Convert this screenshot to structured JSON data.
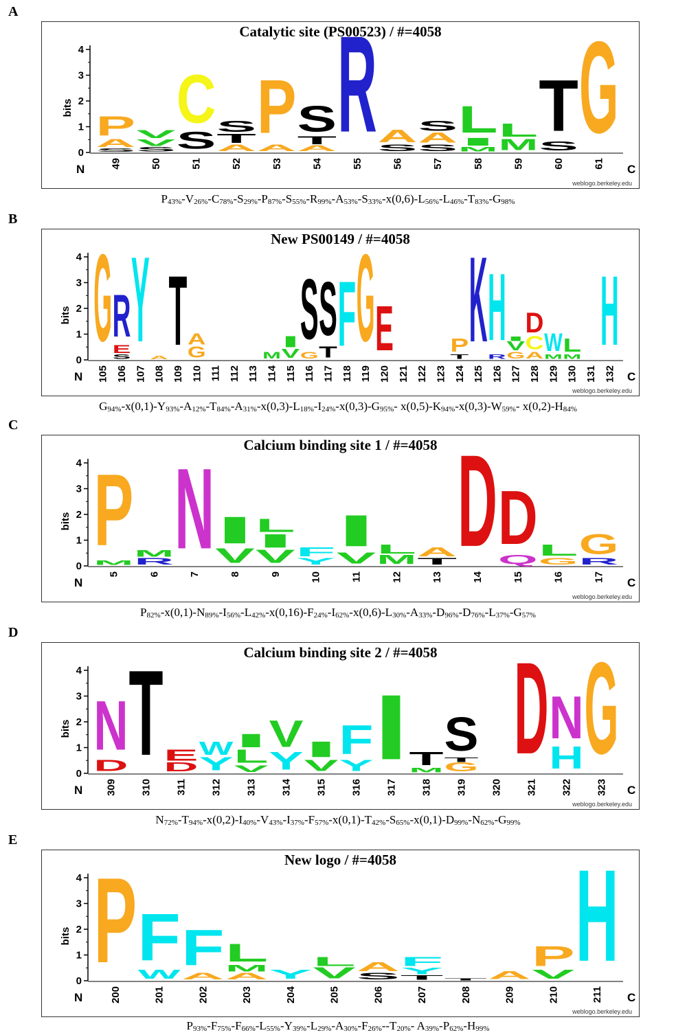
{
  "panels": [
    {
      "label": "A",
      "title": "Catalytic site (PS00523) / #=4058",
      "ylabel": "bits",
      "yticks": [
        "0",
        "1",
        "2",
        "3",
        "4"
      ],
      "n_label": "N",
      "c_label": "C",
      "credit": "weblogo.berkeley.edu",
      "consensus": "P43%-V26%-C78%-S29%-P87%-S55%-R99%-A53%-S33%-x(0,6)-L56%-L46%-T83%-G98%",
      "positions": [
        "49",
        "50",
        "51",
        "52",
        "53",
        "54",
        "55",
        "56",
        "57",
        "58",
        "59",
        "60",
        "61"
      ],
      "stacks": [
        [
          [
            "S",
            0.15
          ],
          [
            "A",
            0.35
          ],
          [
            "P",
            0.85
          ]
        ],
        [
          [
            "S",
            0.2
          ],
          [
            "V",
            0.3
          ],
          [
            "V",
            0.35
          ]
        ],
        [
          [
            "S",
            0.75
          ],
          [
            "C",
            2.15
          ]
        ],
        [
          [
            "A",
            0.3
          ],
          [
            "T",
            0.4
          ],
          [
            "S",
            0.5
          ]
        ],
        [
          [
            "A",
            0.3
          ],
          [
            "P",
            2.4
          ]
        ],
        [
          [
            "A",
            0.25
          ],
          [
            "T",
            0.35
          ],
          [
            "S",
            1.15
          ]
        ],
        [
          [
            "R",
            4.3
          ]
        ],
        [
          [
            "S",
            0.3
          ],
          [
            "A",
            0.55
          ]
        ],
        [
          [
            "S",
            0.3
          ],
          [
            "A",
            0.45
          ],
          [
            "S",
            0.45
          ]
        ],
        [
          [
            "M",
            0.2
          ],
          [
            "I",
            0.35
          ],
          [
            "L",
            1.2
          ]
        ],
        [
          [
            "M",
            0.5
          ],
          [
            "L",
            0.6
          ]
        ],
        [
          [
            "S",
            0.4
          ],
          [
            "T",
            2.3
          ]
        ],
        [
          [
            "G",
            4.1
          ]
        ]
      ]
    },
    {
      "label": "B",
      "title": "New PS00149 / #=4058",
      "ylabel": "bits",
      "yticks": [
        "0",
        "1",
        "2",
        "3",
        "4"
      ],
      "n_label": "N",
      "c_label": "C",
      "credit": "weblogo.berkeley.edu",
      "consensus": "G94%-x(0,1)-Y93%-A12%-T84%-A31%-x(0,3)-L18%-I24%-x(0,3)-G95%- x(0,5)-K94%-x(0,3)-W59%- x(0,2)-H84%",
      "positions": [
        "105",
        "106",
        "107",
        "108",
        "109",
        "110",
        "111",
        "112",
        "113",
        "114",
        "115",
        "116",
        "117",
        "118",
        "119",
        "120",
        "121",
        "122",
        "123",
        "124",
        "125",
        "126",
        "127",
        "128",
        "129",
        "130",
        "131",
        "132"
      ],
      "stacks": [
        [
          [
            "G",
            3.9
          ]
        ],
        [
          [
            "S",
            0.2
          ],
          [
            "E",
            0.35
          ],
          [
            "R",
            1.9
          ]
        ],
        [
          [
            "Y",
            3.8
          ]
        ],
        [
          [
            "A",
            0.15
          ]
        ],
        [
          [
            "T",
            3.1
          ]
        ],
        [
          [
            "G",
            0.5
          ],
          [
            "A",
            0.5
          ]
        ],
        [],
        [],
        [],
        [
          [
            "M",
            0.3
          ]
        ],
        [
          [
            "V",
            0.4
          ],
          [
            "I",
            0.5
          ]
        ],
        [
          [
            "G",
            0.3
          ],
          [
            "S",
            2.7
          ]
        ],
        [
          [
            "T",
            0.5
          ],
          [
            "S",
            2.4
          ]
        ],
        [
          [
            "F",
            2.9
          ]
        ],
        [
          [
            "G",
            3.9
          ]
        ],
        [
          [
            "E",
            2.0
          ]
        ],
        [],
        [],
        [],
        [
          [
            "T",
            0.2
          ],
          [
            "P",
            0.6
          ]
        ],
        [
          [
            "K",
            3.8
          ]
        ],
        [
          [
            "R",
            0.2
          ],
          [
            "H",
            3.0
          ]
        ],
        [
          [
            "G",
            0.3
          ],
          [
            "V",
            0.4
          ],
          [
            "I",
            0.2
          ]
        ],
        [
          [
            "A",
            0.3
          ],
          [
            "C",
            0.6
          ],
          [
            "D",
            0.9
          ]
        ],
        [
          [
            "M",
            0.2
          ],
          [
            "W",
            0.8
          ]
        ],
        [
          [
            "M",
            0.2
          ],
          [
            "L",
            0.6
          ]
        ],
        [],
        [
          [
            "H",
            3.1
          ]
        ]
      ]
    },
    {
      "label": "C",
      "title": "Calcium binding site 1 / #=4058",
      "ylabel": "bits",
      "yticks": [
        "0",
        "1",
        "2",
        "3",
        "4"
      ],
      "n_label": "N",
      "c_label": "C",
      "credit": "weblogo.berkeley.edu",
      "consensus": "P82%-x(0,1)-N89%-I56%-L42%-x(0,16)-F24%-I62%-x(0,6)-L30%-A33%-D96%-D76%-L37%-G57%",
      "positions": [
        "5",
        "6",
        "7",
        "8",
        "9",
        "10",
        "11",
        "12",
        "13",
        "14",
        "15",
        "16",
        "17"
      ],
      "stacks": [
        [
          [
            "M",
            0.2
          ],
          [
            "P",
            3.2
          ]
        ],
        [
          [
            "R",
            0.3
          ],
          [
            "M",
            0.3
          ]
        ],
        [
          [
            "N",
            3.6
          ]
        ],
        [
          [
            "V",
            0.65
          ],
          [
            "I",
            1.2
          ]
        ],
        [
          [
            "V",
            0.6
          ],
          [
            "I",
            0.6
          ],
          [
            "L",
            0.6
          ]
        ],
        [
          [
            "Y",
            0.3
          ],
          [
            "F",
            0.4
          ]
        ],
        [
          [
            "V",
            0.5
          ],
          [
            "I",
            1.4
          ]
        ],
        [
          [
            "M",
            0.4
          ],
          [
            "L",
            0.4
          ]
        ],
        [
          [
            "T",
            0.3
          ],
          [
            "A",
            0.4
          ]
        ],
        [
          [
            "D",
            4.1
          ]
        ],
        [
          [
            "Q",
            0.4
          ],
          [
            "D",
            2.4
          ]
        ],
        [
          [
            "G",
            0.3
          ],
          [
            "L",
            0.5
          ]
        ],
        [
          [
            "R",
            0.3
          ],
          [
            "G",
            0.9
          ]
        ]
      ]
    },
    {
      "label": "D",
      "title": "Calcium binding site 2 / #=4058",
      "ylabel": "bits",
      "yticks": [
        "0",
        "1",
        "2",
        "3",
        "4"
      ],
      "n_label": "N",
      "c_label": "C",
      "credit": "weblogo.berkeley.edu",
      "consensus": "N72%-T94%-x(0,2)-I40%-V43%-I37%-F57%-x(0,1)-T42%-S65%-x(0,1)-D99%-N62%-G99%",
      "positions": [
        "309",
        "310",
        "311",
        "312",
        "313",
        "314",
        "315",
        "316",
        "317",
        "318",
        "319",
        "320",
        "321",
        "322",
        "323"
      ],
      "stacks": [
        [
          [
            "D",
            0.5
          ],
          [
            "N",
            2.2
          ]
        ],
        [
          [
            "T",
            3.8
          ]
        ],
        [
          [
            "D",
            0.4
          ],
          [
            "E",
            0.5
          ]
        ],
        [
          [
            "Y",
            0.6
          ],
          [
            "W",
            0.6
          ]
        ],
        [
          [
            "V",
            0.3
          ],
          [
            "L",
            0.6
          ],
          [
            "I",
            0.6
          ]
        ],
        [
          [
            "Y",
            0.8
          ],
          [
            "V",
            1.2
          ]
        ],
        [
          [
            "V",
            0.5
          ],
          [
            "I",
            0.7
          ]
        ],
        [
          [
            "Y",
            0.5
          ],
          [
            "F",
            1.3
          ]
        ],
        [
          [
            "I",
            2.9
          ]
        ],
        [
          [
            "M",
            0.2
          ],
          [
            "T",
            0.6
          ]
        ],
        [
          [
            "G",
            0.4
          ],
          [
            "T",
            0.2
          ],
          [
            "S",
            1.5
          ]
        ],
        [],
        [
          [
            "D",
            4.1
          ]
        ],
        [
          [
            "H",
            1.0
          ],
          [
            "N",
            1.9
          ]
        ],
        [
          [
            "G",
            4.1
          ]
        ]
      ]
    },
    {
      "label": "E",
      "title": "New logo / #=4058",
      "ylabel": "bits",
      "yticks": [
        "0",
        "1",
        "2",
        "3",
        "4"
      ],
      "n_label": "N",
      "c_label": "C",
      "credit": "weblogo.berkeley.edu",
      "consensus": "P93%-F75%-F66%-L55%-Y39%-L29%-A30%-F26%--T20%- A39%-P62%-H99%",
      "positions": [
        "200",
        "201",
        "202",
        "203",
        "204",
        "205",
        "206",
        "207",
        "208",
        "209",
        "210",
        "211"
      ],
      "stacks": [
        [
          [
            "P",
            3.8
          ]
        ],
        [
          [
            "W",
            0.4
          ],
          [
            "F",
            2.1
          ]
        ],
        [
          [
            "A",
            0.3
          ],
          [
            "F",
            1.6
          ]
        ],
        [
          [
            "A",
            0.3
          ],
          [
            "M",
            0.3
          ],
          [
            "L",
            0.8
          ]
        ],
        [
          [
            "Y",
            0.4
          ]
        ],
        [
          [
            "V",
            0.5
          ],
          [
            "L",
            0.4
          ]
        ],
        [
          [
            "S",
            0.3
          ],
          [
            "A",
            0.4
          ]
        ],
        [
          [
            "T",
            0.2
          ],
          [
            "Y",
            0.3
          ],
          [
            "F",
            0.4
          ]
        ],
        [
          [
            "T",
            0.1
          ]
        ],
        [
          [
            "A",
            0.35
          ]
        ],
        [
          [
            "V",
            0.4
          ],
          [
            "P",
            0.9
          ]
        ],
        [
          [
            "H",
            4.1
          ]
        ]
      ]
    }
  ],
  "colors": {
    "P": "#f8a920",
    "A": "#f8a920",
    "G": "#f8a920",
    "S": "#000000",
    "T": "#000000",
    "V": "#22cc22",
    "L": "#22cc22",
    "I": "#22cc22",
    "M": "#22cc22",
    "C": "#f5f518",
    "R": "#2222cc",
    "K": "#2222cc",
    "F": "#00e5ee",
    "Y": "#00e5ee",
    "W": "#00e5ee",
    "H": "#00e5ee",
    "N": "#cc33cc",
    "Q": "#cc33cc",
    "D": "#dd1111",
    "E": "#dd1111"
  }
}
